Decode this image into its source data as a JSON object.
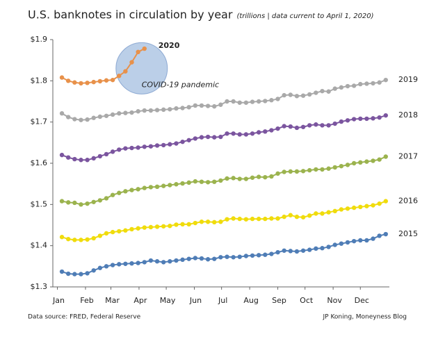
{
  "chart_data": {
    "type": "line",
    "title": "U.S. banknotes in circulation by year",
    "subtitle": "(trillions | data current to April 1, 2020)",
    "source": "Data source: FRED, Federal Reserve",
    "credit": "JP Koning, Moneyness Blog",
    "annotations": [
      {
        "text": "COVID-19 pandemic",
        "x": 96,
        "y": 1.81
      }
    ],
    "x": [
      5,
      12,
      19,
      26,
      33,
      40,
      47,
      54,
      61,
      68,
      75,
      82,
      89,
      96,
      103,
      110,
      117,
      124,
      131,
      138,
      145,
      152,
      159,
      166,
      173,
      180,
      187,
      194,
      201,
      208,
      215,
      222,
      229,
      236,
      243,
      250,
      257,
      264,
      271,
      278,
      285,
      292,
      299,
      306,
      313,
      320,
      327,
      334,
      341,
      348,
      355,
      362
    ],
    "xlim": [
      -5,
      366
    ],
    "xticks": [
      {
        "value": 0,
        "label": "Jan"
      },
      {
        "value": 31,
        "label": "Feb"
      },
      {
        "value": 59,
        "label": "Mar"
      },
      {
        "value": 90,
        "label": "Apr"
      },
      {
        "value": 120,
        "label": "May"
      },
      {
        "value": 151,
        "label": "Jun"
      },
      {
        "value": 181,
        "label": "Jul"
      },
      {
        "value": 212,
        "label": "Aug"
      },
      {
        "value": 243,
        "label": "Sep"
      },
      {
        "value": 273,
        "label": "Oct"
      },
      {
        "value": 304,
        "label": "Nov"
      },
      {
        "value": 334,
        "label": "Dec"
      }
    ],
    "ylim": [
      1.3,
      1.9
    ],
    "yticks": [
      {
        "value": 1.3,
        "label": "$1.3"
      },
      {
        "value": 1.4,
        "label": "$1.4"
      },
      {
        "value": 1.5,
        "label": "$1.5"
      },
      {
        "value": 1.6,
        "label": "$1.6"
      },
      {
        "value": 1.7,
        "label": "$1.7"
      },
      {
        "value": 1.8,
        "label": "$1.8"
      },
      {
        "value": 1.9,
        "label": "$1.9"
      }
    ],
    "grid": false,
    "series": [
      {
        "name": "2015",
        "color": "#4f7db6",
        "values": [
          1.337,
          1.332,
          1.331,
          1.331,
          1.333,
          1.34,
          1.346,
          1.35,
          1.353,
          1.355,
          1.356,
          1.357,
          1.358,
          1.36,
          1.364,
          1.362,
          1.36,
          1.362,
          1.364,
          1.366,
          1.368,
          1.37,
          1.369,
          1.367,
          1.368,
          1.372,
          1.373,
          1.372,
          1.373,
          1.375,
          1.376,
          1.377,
          1.378,
          1.38,
          1.384,
          1.388,
          1.387,
          1.386,
          1.388,
          1.39,
          1.393,
          1.394,
          1.397,
          1.402,
          1.405,
          1.408,
          1.411,
          1.413,
          1.413,
          1.417,
          1.424,
          1.428
        ]
      },
      {
        "name": "2016",
        "color": "#f0dc0c",
        "values": [
          1.421,
          1.416,
          1.414,
          1.414,
          1.415,
          1.418,
          1.424,
          1.43,
          1.433,
          1.435,
          1.437,
          1.44,
          1.442,
          1.444,
          1.445,
          1.446,
          1.447,
          1.448,
          1.451,
          1.452,
          1.452,
          1.455,
          1.458,
          1.458,
          1.457,
          1.458,
          1.464,
          1.466,
          1.465,
          1.464,
          1.465,
          1.465,
          1.465,
          1.466,
          1.466,
          1.47,
          1.474,
          1.47,
          1.469,
          1.473,
          1.478,
          1.478,
          1.481,
          1.484,
          1.488,
          1.49,
          1.492,
          1.494,
          1.496,
          1.498,
          1.502,
          1.508
        ]
      },
      {
        "name": "2017",
        "color": "#9bb34e",
        "values": [
          1.508,
          1.505,
          1.504,
          1.5,
          1.502,
          1.506,
          1.51,
          1.515,
          1.523,
          1.528,
          1.532,
          1.535,
          1.537,
          1.54,
          1.542,
          1.543,
          1.545,
          1.547,
          1.549,
          1.551,
          1.553,
          1.556,
          1.555,
          1.554,
          1.555,
          1.558,
          1.563,
          1.564,
          1.562,
          1.562,
          1.565,
          1.567,
          1.566,
          1.568,
          1.575,
          1.579,
          1.58,
          1.58,
          1.581,
          1.583,
          1.585,
          1.585,
          1.587,
          1.59,
          1.593,
          1.596,
          1.6,
          1.602,
          1.604,
          1.606,
          1.609,
          1.616
        ]
      },
      {
        "name": "2018",
        "color": "#7b559f",
        "values": [
          1.62,
          1.614,
          1.61,
          1.608,
          1.608,
          1.612,
          1.617,
          1.622,
          1.628,
          1.633,
          1.636,
          1.637,
          1.638,
          1.64,
          1.641,
          1.643,
          1.644,
          1.646,
          1.648,
          1.652,
          1.656,
          1.66,
          1.663,
          1.664,
          1.663,
          1.664,
          1.672,
          1.672,
          1.67,
          1.67,
          1.672,
          1.675,
          1.677,
          1.68,
          1.684,
          1.69,
          1.689,
          1.686,
          1.688,
          1.692,
          1.694,
          1.692,
          1.692,
          1.696,
          1.701,
          1.704,
          1.707,
          1.708,
          1.708,
          1.709,
          1.711,
          1.716
        ]
      },
      {
        "name": "2019",
        "color": "#a9a9a9",
        "values": [
          1.721,
          1.712,
          1.707,
          1.705,
          1.706,
          1.71,
          1.713,
          1.715,
          1.718,
          1.721,
          1.722,
          1.723,
          1.726,
          1.728,
          1.728,
          1.729,
          1.73,
          1.731,
          1.733,
          1.734,
          1.736,
          1.74,
          1.74,
          1.739,
          1.738,
          1.742,
          1.75,
          1.75,
          1.747,
          1.747,
          1.749,
          1.75,
          1.751,
          1.753,
          1.756,
          1.765,
          1.766,
          1.763,
          1.764,
          1.767,
          1.771,
          1.775,
          1.774,
          1.781,
          1.784,
          1.787,
          1.788,
          1.792,
          1.793,
          1.794,
          1.796,
          1.802
        ]
      },
      {
        "name": "2020",
        "color": "#e8914a",
        "values": [
          1.808,
          1.8,
          1.796,
          1.794,
          1.795,
          1.797,
          1.799,
          1.801,
          1.802,
          1.812,
          1.823,
          1.845,
          1.87,
          1.878,
          null,
          null,
          null,
          null,
          null,
          null,
          null,
          null,
          null,
          null,
          null,
          null,
          null,
          null,
          null,
          null,
          null,
          null,
          null,
          null,
          null,
          null,
          null,
          null,
          null,
          null,
          null,
          null,
          null,
          null,
          null,
          null,
          null,
          null,
          null,
          null,
          null,
          null
        ]
      }
    ]
  }
}
